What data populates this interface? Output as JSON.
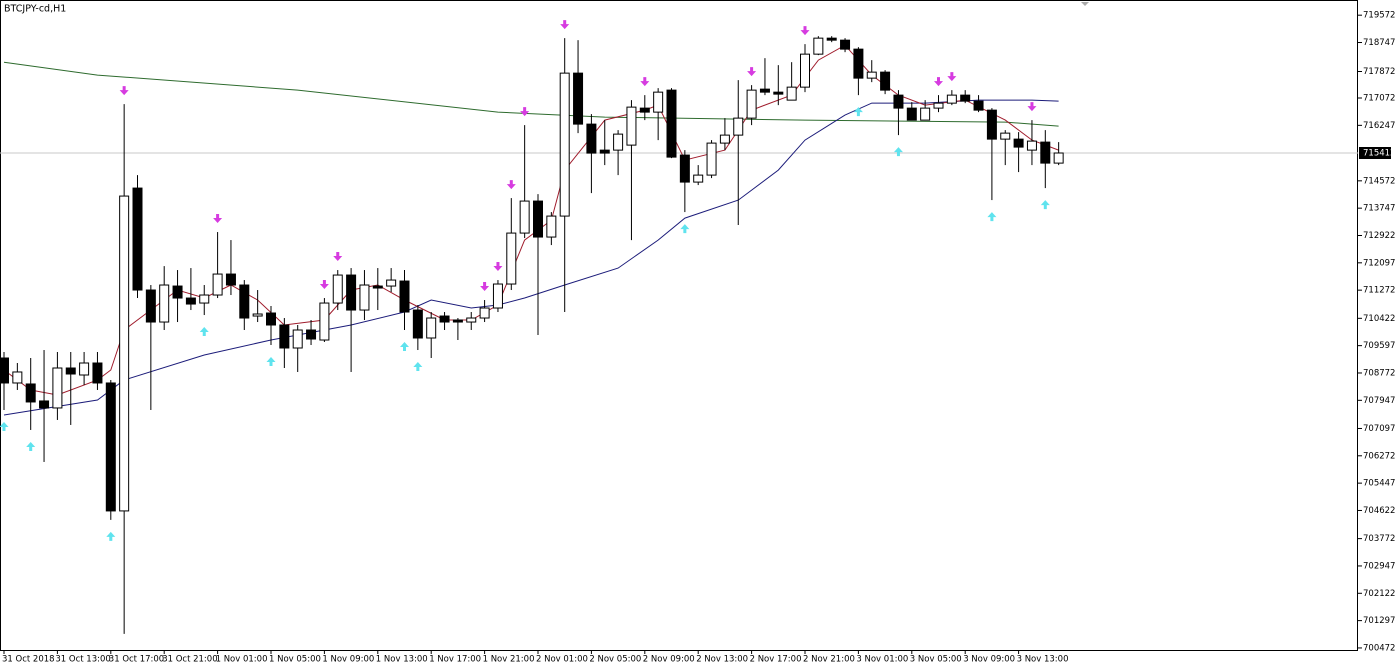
{
  "chart_data": {
    "type": "candlestick",
    "title": "BTCJPY-cd,H1",
    "categories": [
      "31 Oct 2018",
      null,
      null,
      null,
      "31 Oct 13:00",
      null,
      null,
      null,
      "31 Oct 17:00",
      null,
      null,
      null,
      "31 Oct 21:00",
      null,
      null,
      null,
      "1 Nov 01:00",
      null,
      null,
      null,
      "1 Nov 05:00",
      null,
      null,
      null,
      "1 Nov 09:00",
      null,
      null,
      null,
      "1 Nov 13:00",
      null,
      null,
      null,
      "1 Nov 17:00",
      null,
      null,
      null,
      "1 Nov 21:00",
      null,
      null,
      null,
      "2 Nov 01:00",
      null,
      null,
      null,
      "2 Nov 05:00",
      null,
      null,
      null,
      "2 Nov 09:00",
      null,
      null,
      null,
      "2 Nov 13:00",
      null,
      null,
      null,
      "2 Nov 17:00",
      null,
      null,
      null,
      "2 Nov 21:00",
      null,
      null,
      null,
      "3 Nov 01:00",
      null,
      null,
      null,
      "3 Nov 05:00",
      null,
      null,
      null,
      "3 Nov 09:00",
      null,
      null,
      null,
      "3 Nov 13:00",
      null,
      null,
      null
    ],
    "open": [
      709224,
      708470,
      708440,
      707927,
      707716,
      708922,
      708711,
      709073,
      708470,
      704608,
      714353,
      711276,
      710310,
      711396,
      711034,
      710883,
      711125,
      711758,
      711427,
      710491,
      710582,
      710220,
      709526,
      710069,
      709767,
      710883,
      711728,
      710672,
      711396,
      711396,
      711547,
      710672,
      709828,
      710491,
      710371,
      710310,
      710431,
      710733,
      711457,
      712995,
      713961,
      712875,
      713508,
      717823,
      716284,
      715499,
      715499,
      715650,
      716767,
      716646,
      717310,
      715349,
      714534,
      714745,
      715711,
      715952,
      716465,
      717340,
      717249,
      717008,
      717400,
      718396,
      718879,
      718818,
      718547,
      717672,
      717853,
      717159,
      716767,
      716405,
      716767,
      716917,
      717159,
      716978,
      716706,
      715831,
      715831,
      715499,
      715741,
      715107
    ],
    "high": [
      709405,
      709073,
      709224,
      709465,
      709405,
      709405,
      709405,
      709405,
      708560,
      716887,
      714745,
      711427,
      711998,
      711879,
      711939,
      711427,
      713026,
      712784,
      711577,
      711276,
      710793,
      710431,
      710220,
      710371,
      711034,
      711879,
      711939,
      711879,
      711939,
      711939,
      711879,
      710823,
      710612,
      710612,
      710431,
      710612,
      710974,
      711577,
      714051,
      716254,
      714172,
      713629,
      718879,
      718818,
      716586,
      716405,
      716103,
      717008,
      717159,
      717370,
      717370,
      715499,
      715047,
      715801,
      716465,
      717611,
      717461,
      718275,
      718064,
      718154,
      718698,
      718939,
      718939,
      718879,
      718607,
      718215,
      717913,
      717310,
      716948,
      717008,
      717159,
      717310,
      717310,
      717159,
      716767,
      716103,
      716043,
      716405,
      716103,
      715741
    ],
    "low": [
      707655,
      708259,
      707052,
      706086,
      707354,
      707203,
      708410,
      708259,
      704337,
      700897,
      711034,
      707655,
      710069,
      710310,
      710672,
      710521,
      711034,
      711125,
      710069,
      710310,
      709616,
      708922,
      708802,
      709616,
      709707,
      710672,
      708802,
      710371,
      710672,
      711215,
      710069,
      709465,
      709224,
      710069,
      709767,
      710069,
      710310,
      710612,
      711276,
      712845,
      709918,
      712633,
      710612,
      716012,
      714202,
      715047,
      714745,
      712784,
      716405,
      715801,
      715258,
      713629,
      714444,
      714655,
      715499,
      713237,
      716254,
      717159,
      716857,
      717008,
      717249,
      718366,
      718758,
      718456,
      717159,
      717551,
      717189,
      715952,
      716405,
      716405,
      716646,
      716857,
      716917,
      716646,
      713991,
      715047,
      714836,
      715047,
      714353,
      715047
    ],
    "close": [
      708470,
      708802,
      707897,
      707716,
      708922,
      708741,
      709073,
      708470,
      704608,
      714112,
      711276,
      710310,
      711427,
      711034,
      710853,
      711125,
      711758,
      711427,
      710431,
      710552,
      710220,
      709526,
      710069,
      709797,
      710883,
      711728,
      710672,
      711427,
      711336,
      711577,
      710612,
      709828,
      710431,
      710310,
      710310,
      710431,
      710733,
      711457,
      712995,
      713961,
      712875,
      713508,
      717823,
      716284,
      715409,
      715409,
      715982,
      716797,
      716646,
      717249,
      715288,
      714534,
      714745,
      715711,
      715952,
      716465,
      717310,
      717249,
      717189,
      717400,
      718396,
      718879,
      718818,
      718547,
      717672,
      717853,
      717310,
      716767,
      716405,
      716767,
      716917,
      717159,
      716978,
      716706,
      715831,
      716012,
      715590,
      715771,
      715107,
      715412
    ],
    "up_color": "#ffffff",
    "down_color": "#000000",
    "ylim": [
      700410,
      719970
    ],
    "yticks": [
      719572,
      718747,
      717872,
      717072,
      716247,
      714572,
      713747,
      712922,
      712097,
      711272,
      710422,
      709597,
      708772,
      707947,
      707097,
      706272,
      705447,
      704622,
      703772,
      702947,
      702122,
      701297,
      700472
    ],
    "current_price": 715412,
    "indicators": [
      {
        "color": "#2e6b2e",
        "x": [
          0,
          7,
          22,
          37,
          45,
          60,
          75,
          79
        ],
        "values": [
          718154,
          717762,
          717310,
          716646,
          716495,
          716405,
          716344,
          716224
        ]
      },
      {
        "color": "#1c1c7a",
        "x": [
          0,
          7,
          9,
          15,
          20,
          26,
          30,
          32,
          35,
          37,
          39,
          42,
          46,
          49,
          51,
          55,
          58,
          60,
          63,
          65,
          69,
          73,
          77,
          79
        ],
        "values": [
          707504,
          707957,
          708560,
          709315,
          709767,
          710220,
          710612,
          710974,
          710733,
          710823,
          711034,
          711427,
          711939,
          712784,
          713448,
          713991,
          714896,
          715801,
          716555,
          716917,
          716917,
          717008,
          717008,
          716978
        ]
      },
      {
        "color": "#a01c2c",
        "x": [
          0,
          2,
          4,
          7,
          8,
          9,
          11,
          13,
          15,
          17,
          19,
          21,
          24,
          26,
          28,
          30,
          33,
          35,
          37,
          39,
          41,
          42,
          45,
          48,
          49,
          51,
          54,
          56,
          59,
          61,
          63,
          65,
          67,
          69,
          72,
          75,
          77,
          79
        ],
        "values": [
          708862,
          708259,
          708108,
          708560,
          708862,
          710069,
          710672,
          711276,
          711034,
          711427,
          710974,
          710220,
          710371,
          711276,
          711427,
          710974,
          710371,
          710371,
          710823,
          712784,
          713388,
          714896,
          716405,
          716706,
          716857,
          715198,
          715499,
          716706,
          717159,
          718215,
          718667,
          717762,
          717159,
          716857,
          717008,
          716405,
          715801,
          715499
        ]
      }
    ],
    "signals": {
      "sell": {
        "color": "#d63be0",
        "x": [
          9,
          16,
          24,
          25,
          36,
          37,
          38,
          39,
          42,
          48,
          56,
          60,
          70,
          71,
          77
        ]
      },
      "buy": {
        "color": "#5fe3ee",
        "x": [
          0,
          2,
          8,
          15,
          20,
          30,
          31,
          51,
          64,
          67,
          74,
          78
        ]
      }
    }
  }
}
